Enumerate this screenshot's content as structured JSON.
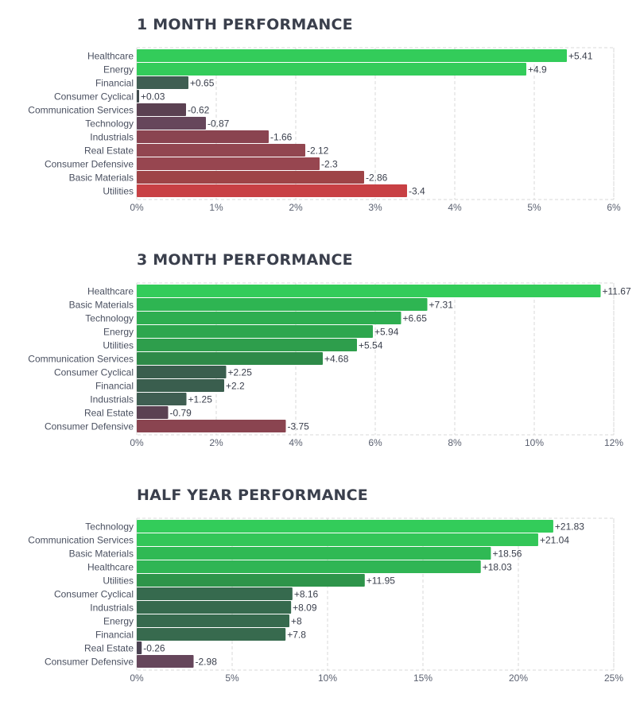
{
  "chart_data": [
    {
      "type": "bar",
      "orientation": "horizontal",
      "title": "1 MONTH PERFORMANCE",
      "categories": [
        "Healthcare",
        "Energy",
        "Financial",
        "Consumer Cyclical",
        "Communication Services",
        "Technology",
        "Industrials",
        "Real Estate",
        "Consumer Defensive",
        "Basic Materials",
        "Utilities"
      ],
      "values": [
        5.41,
        4.9,
        0.65,
        0.03,
        -0.62,
        -0.87,
        -1.66,
        -2.12,
        -2.3,
        -2.86,
        -3.4
      ],
      "value_labels": [
        "+5.41",
        "+4.9",
        "+0.65",
        "+0.03",
        "-0.62",
        "-0.87",
        "-1.66",
        "-2.12",
        "-2.3",
        "-2.86",
        "-3.4"
      ],
      "xlim": [
        0,
        6
      ],
      "x_ticks": [
        0,
        1,
        2,
        3,
        4,
        5,
        6
      ],
      "x_tick_labels": [
        "0%",
        "1%",
        "2%",
        "3%",
        "4%",
        "5%",
        "6%"
      ],
      "colors": [
        "#33cc5a",
        "#33cc5a",
        "#3f5e52",
        "#3f4a4c",
        "#5b4152",
        "#66465b",
        "#8a4450",
        "#924650",
        "#974650",
        "#9e4447",
        "#c84044"
      ],
      "grid": true
    },
    {
      "type": "bar",
      "orientation": "horizontal",
      "title": "3 MONTH PERFORMANCE",
      "categories": [
        "Healthcare",
        "Basic Materials",
        "Technology",
        "Energy",
        "Utilities",
        "Communication Services",
        "Consumer Cyclical",
        "Financial",
        "Industrials",
        "Real Estate",
        "Consumer Defensive"
      ],
      "values": [
        11.67,
        7.31,
        6.65,
        5.94,
        5.54,
        4.68,
        2.25,
        2.2,
        1.25,
        -0.79,
        -3.75
      ],
      "value_labels": [
        "+11.67",
        "+7.31",
        "+6.65",
        "+5.94",
        "+5.54",
        "+4.68",
        "+2.25",
        "+2.2",
        "+1.25",
        "-0.79",
        "-3.75"
      ],
      "xlim": [
        0,
        12
      ],
      "x_ticks": [
        0,
        2,
        4,
        6,
        8,
        10,
        12
      ],
      "x_tick_labels": [
        "0%",
        "2%",
        "4%",
        "6%",
        "8%",
        "10%",
        "12%"
      ],
      "colors": [
        "#33cc5a",
        "#2eb552",
        "#2eae50",
        "#2ea64e",
        "#2e9e4c",
        "#2e8a48",
        "#3a5e4e",
        "#3a5e4e",
        "#3f5e52",
        "#5b4152",
        "#8a4450"
      ],
      "grid": true
    },
    {
      "type": "bar",
      "orientation": "horizontal",
      "title": "HALF YEAR PERFORMANCE",
      "categories": [
        "Technology",
        "Communication Services",
        "Basic Materials",
        "Healthcare",
        "Utilities",
        "Consumer Cyclical",
        "Industrials",
        "Energy",
        "Financial",
        "Real Estate",
        "Consumer Defensive"
      ],
      "values": [
        21.83,
        21.04,
        18.56,
        18.03,
        11.95,
        8.16,
        8.09,
        8.0,
        7.8,
        -0.26,
        -2.98
      ],
      "value_labels": [
        "+21.83",
        "+21.04",
        "+18.56",
        "+18.03",
        "+11.95",
        "+8.16",
        "+8.09",
        "+8",
        "+7.8",
        "-0.26",
        "-2.98"
      ],
      "xlim": [
        0,
        25
      ],
      "x_ticks": [
        0,
        5,
        10,
        15,
        20,
        25
      ],
      "x_tick_labels": [
        "0%",
        "5%",
        "10%",
        "15%",
        "20%",
        "25%"
      ],
      "colors": [
        "#33cc5a",
        "#33c658",
        "#30b954",
        "#30b554",
        "#2e944a",
        "#366a4e",
        "#366a4e",
        "#366a4e",
        "#376a4e",
        "#4b4252",
        "#66465b"
      ],
      "grid": true
    }
  ]
}
